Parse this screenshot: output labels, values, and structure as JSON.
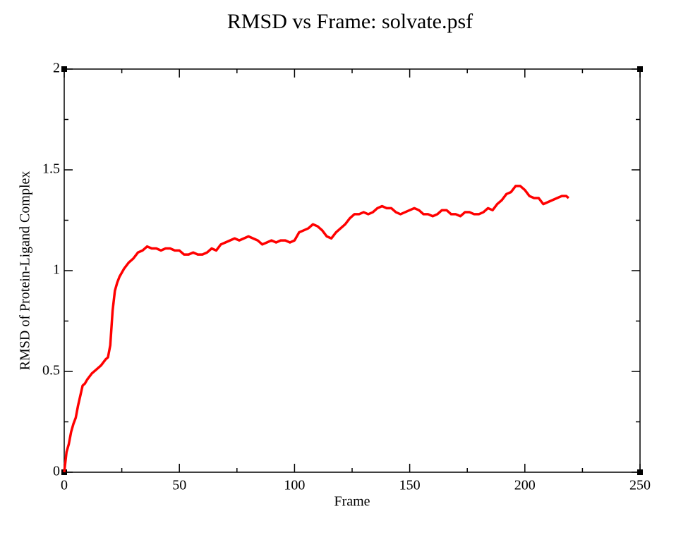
{
  "chart_data": {
    "type": "line",
    "title": "RMSD vs Frame: solvate.psf",
    "x_label": "Frame",
    "y_label": "RMSD of Protein-Ligand Complex",
    "x": [
      0,
      1,
      2,
      3,
      4,
      5,
      6,
      7,
      8,
      9,
      10,
      12,
      14,
      16,
      18,
      19,
      20,
      21,
      22,
      23,
      24,
      26,
      28,
      30,
      32,
      34,
      36,
      38,
      40,
      42,
      44,
      46,
      48,
      50,
      52,
      54,
      56,
      58,
      60,
      62,
      64,
      66,
      68,
      70,
      72,
      74,
      76,
      78,
      80,
      82,
      84,
      86,
      88,
      90,
      92,
      94,
      96,
      98,
      100,
      102,
      104,
      106,
      108,
      110,
      112,
      114,
      116,
      118,
      120,
      122,
      124,
      126,
      128,
      130,
      132,
      134,
      136,
      138,
      140,
      142,
      144,
      146,
      148,
      150,
      152,
      154,
      156,
      158,
      160,
      162,
      164,
      166,
      168,
      170,
      172,
      174,
      176,
      178,
      180,
      182,
      184,
      186,
      188,
      190,
      192,
      194,
      196,
      198,
      200,
      202,
      204,
      206,
      208,
      210,
      212,
      214,
      216,
      218,
      219
    ],
    "values": [
      0,
      0.1,
      0.14,
      0.2,
      0.24,
      0.27,
      0.33,
      0.38,
      0.43,
      0.44,
      0.46,
      0.49,
      0.51,
      0.53,
      0.56,
      0.57,
      0.63,
      0.8,
      0.9,
      0.94,
      0.97,
      1.01,
      1.04,
      1.06,
      1.09,
      1.1,
      1.12,
      1.11,
      1.11,
      1.1,
      1.11,
      1.11,
      1.1,
      1.1,
      1.08,
      1.08,
      1.09,
      1.08,
      1.08,
      1.09,
      1.11,
      1.1,
      1.13,
      1.14,
      1.15,
      1.16,
      1.15,
      1.16,
      1.17,
      1.16,
      1.15,
      1.13,
      1.14,
      1.15,
      1.14,
      1.15,
      1.15,
      1.14,
      1.15,
      1.19,
      1.2,
      1.21,
      1.23,
      1.22,
      1.2,
      1.17,
      1.16,
      1.19,
      1.21,
      1.23,
      1.26,
      1.28,
      1.28,
      1.29,
      1.28,
      1.29,
      1.31,
      1.32,
      1.31,
      1.31,
      1.29,
      1.28,
      1.29,
      1.3,
      1.31,
      1.3,
      1.28,
      1.28,
      1.27,
      1.28,
      1.3,
      1.3,
      1.28,
      1.28,
      1.27,
      1.29,
      1.29,
      1.28,
      1.28,
      1.29,
      1.31,
      1.3,
      1.33,
      1.35,
      1.38,
      1.39,
      1.42,
      1.42,
      1.4,
      1.37,
      1.36,
      1.36,
      1.33,
      1.34,
      1.35,
      1.36,
      1.37,
      1.37,
      1.36
    ],
    "color": "#ff0000",
    "xlim": [
      0,
      250
    ],
    "xticks": [
      0,
      50,
      100,
      150,
      200,
      250
    ],
    "xminorticks": [
      25,
      75,
      125,
      175,
      225
    ],
    "ylim": [
      0,
      2
    ],
    "yticks": [
      0,
      0.5,
      1,
      1.5,
      2
    ],
    "yminorticks": [
      0.25,
      0.75,
      1.25,
      1.75
    ]
  }
}
